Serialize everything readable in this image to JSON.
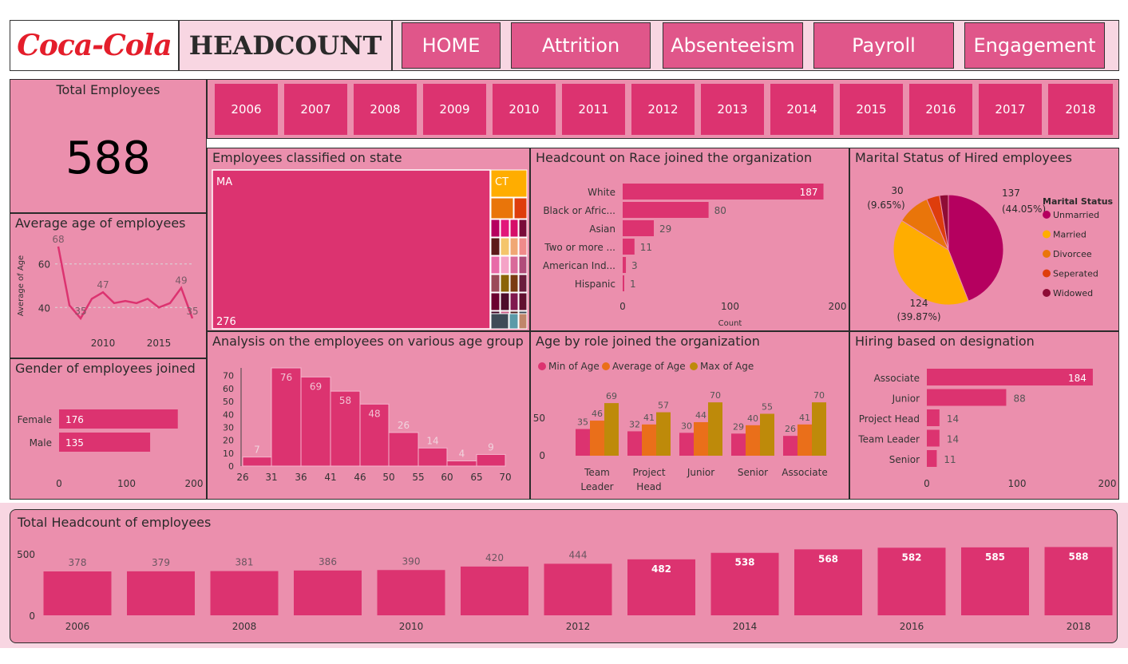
{
  "header": {
    "logo_text": "Coca-Cola",
    "title": "HEADCOUNT",
    "nav": [
      "HOME",
      "Attrition",
      "Absenteeism",
      "Payroll",
      "Engagement"
    ]
  },
  "years": [
    "2006",
    "2007",
    "2008",
    "2009",
    "2010",
    "2011",
    "2012",
    "2013",
    "2014",
    "2015",
    "2016",
    "2017",
    "2018"
  ],
  "kpi": {
    "title": "Total Employees",
    "value": "588"
  },
  "colors": {
    "accent": "#dc3370",
    "panel": "#eb8fad",
    "nav": "#e0568a",
    "text": "#2a2a2a"
  },
  "panels": {
    "avg_age": "Average age of employees",
    "gender": "Gender of employees joined",
    "state": "Employees classified on state",
    "race": "Headcount on Race joined the organization",
    "marital": "Marital Status of Hired employees",
    "age_group": "Analysis on the employees on various age group",
    "age_role": "Age by role joined the organization",
    "designation": "Hiring based on designation",
    "total": "Total Headcount of employees"
  },
  "chart_data": [
    {
      "id": "avg_age",
      "type": "line",
      "x": [
        2006,
        2007,
        2008,
        2009,
        2010,
        2011,
        2012,
        2013,
        2014,
        2015,
        2016,
        2017,
        2018
      ],
      "values": [
        68,
        41,
        35,
        44,
        47,
        42,
        43,
        42,
        44,
        40,
        42,
        49,
        35
      ],
      "labeled_points": [
        {
          "x": 2006,
          "label": "68"
        },
        {
          "x": 2008,
          "label": "35"
        },
        {
          "x": 2010,
          "label": "47"
        },
        {
          "x": 2017,
          "label": "49"
        },
        {
          "x": 2018,
          "label": "35"
        }
      ],
      "ylabel": "Average of Age",
      "yticks": [
        "40",
        "60"
      ],
      "xticks": [
        "2010",
        "2015"
      ],
      "ylim": [
        28,
        72
      ]
    },
    {
      "id": "gender",
      "type": "bar",
      "orientation": "horizontal",
      "categories": [
        "Female",
        "Male"
      ],
      "values": [
        176,
        135
      ],
      "labels": [
        "176",
        "135"
      ],
      "xticks": [
        "0",
        "100",
        "200"
      ],
      "xlim": [
        0,
        200
      ]
    },
    {
      "id": "state",
      "type": "treemap",
      "items": [
        {
          "name": "MA",
          "value": 276
        },
        {
          "name": "CT",
          "value": null
        }
      ],
      "labels": {
        "main": "MA",
        "main_value": "276",
        "second": "CT"
      }
    },
    {
      "id": "race",
      "type": "bar",
      "orientation": "horizontal",
      "categories": [
        "White",
        "Black or Afric...",
        "Asian",
        "Two or more ...",
        "American Ind...",
        "Hispanic"
      ],
      "values": [
        187,
        80,
        29,
        11,
        3,
        1
      ],
      "labels": [
        "187",
        "80",
        "29",
        "11",
        "3",
        "1"
      ],
      "xticks": [
        "0",
        "100",
        "200"
      ],
      "xlabel": "Count",
      "xlim": [
        0,
        200
      ]
    },
    {
      "id": "marital",
      "type": "pie",
      "legend_title": "Marital Status",
      "categories": [
        "Unmarried",
        "Married",
        "Divorcee",
        "Seperated",
        "Widowed"
      ],
      "values": [
        137,
        124,
        30,
        12,
        8
      ],
      "colors": [
        "#b5005f",
        "#ffad00",
        "#e9750a",
        "#de3d0c",
        "#8e0c36"
      ],
      "labels": [
        {
          "count": "137",
          "pct": "(44.05%)"
        },
        {
          "count": "124",
          "pct": "(39.87%)"
        },
        {
          "count": "30",
          "pct": "(9.65%)"
        }
      ]
    },
    {
      "id": "age_group",
      "type": "histogram",
      "bins": [
        26,
        31,
        36,
        41,
        46,
        50,
        55,
        60,
        65,
        70
      ],
      "values": [
        7,
        76,
        69,
        58,
        48,
        26,
        14,
        4,
        9
      ],
      "labels": [
        "7",
        "76",
        "69",
        "58",
        "48",
        "26",
        "14",
        "4",
        "9"
      ],
      "xticks": [
        "26",
        "31",
        "36",
        "41",
        "46",
        "50",
        "55",
        "60",
        "65",
        "70"
      ],
      "yticks": [
        "0",
        "10",
        "20",
        "30",
        "40",
        "50",
        "60",
        "70"
      ],
      "ylim": [
        0,
        76
      ]
    },
    {
      "id": "age_role",
      "type": "bar",
      "legend": [
        "Min of Age",
        "Average of Age",
        "Max of Age"
      ],
      "series_colors": [
        "#dc3370",
        "#ea6f1a",
        "#be8a0a"
      ],
      "categories": [
        [
          "Team",
          "Leader"
        ],
        [
          "Project",
          "Head"
        ],
        [
          "Junior"
        ],
        [
          "Senior"
        ],
        [
          "Associate"
        ]
      ],
      "series": [
        {
          "name": "Min of Age",
          "values": [
            35,
            32,
            30,
            29,
            26
          ],
          "labels": [
            "35",
            "32",
            "30",
            "29",
            "26"
          ]
        },
        {
          "name": "Average of Age",
          "values": [
            46,
            41,
            44,
            40,
            41
          ],
          "labels": [
            "46",
            "41",
            "44",
            "40",
            "41"
          ]
        },
        {
          "name": "Max of Age",
          "values": [
            69,
            57,
            70,
            55,
            70
          ],
          "labels": [
            "69",
            "57",
            "70",
            "55",
            "70"
          ]
        }
      ],
      "yticks": [
        "0",
        "50"
      ]
    },
    {
      "id": "designation",
      "type": "bar",
      "orientation": "horizontal",
      "categories": [
        "Associate",
        "Junior",
        "Project Head",
        "Team Leader",
        "Senior"
      ],
      "values": [
        184,
        88,
        14,
        14,
        11
      ],
      "labels": [
        "184",
        "88",
        "14",
        "14",
        "11"
      ],
      "xticks": [
        "0",
        "100",
        "200"
      ],
      "xlim": [
        0,
        200
      ]
    },
    {
      "id": "total",
      "type": "bar",
      "categories": [
        "2006",
        "2007",
        "2008",
        "2009",
        "2010",
        "2011",
        "2012",
        "2013",
        "2014",
        "2015",
        "2016",
        "2017",
        "2018"
      ],
      "values": [
        378,
        379,
        381,
        386,
        390,
        420,
        444,
        482,
        538,
        568,
        582,
        585,
        588
      ],
      "labels": [
        "378",
        "379",
        "381",
        "386",
        "390",
        "420",
        "444",
        "482",
        "538",
        "568",
        "582",
        "585",
        "588"
      ],
      "xticks": [
        "2006",
        "2008",
        "2010",
        "2012",
        "2014",
        "2016",
        "2018"
      ],
      "yticks": [
        "0",
        "500"
      ],
      "ylim": [
        0,
        650
      ]
    }
  ]
}
